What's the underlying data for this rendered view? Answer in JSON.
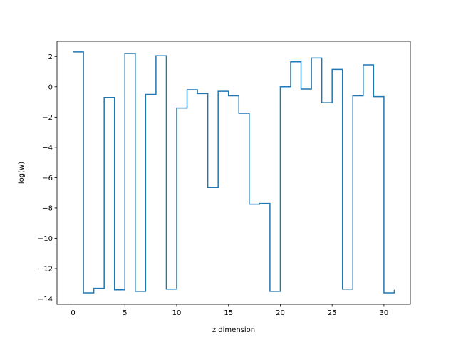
{
  "chart_data": {
    "type": "line",
    "drawstyle": "steps-post",
    "title": "",
    "xlabel": "z dimension",
    "ylabel": "log(w)",
    "xlim": [
      -1.55,
      32.55
    ],
    "ylim": [
      -14.35,
      3.0
    ],
    "xticks": [
      0,
      5,
      10,
      15,
      20,
      25,
      30
    ],
    "yticks": [
      -14,
      -12,
      -10,
      -8,
      -6,
      -4,
      -2,
      0,
      2
    ],
    "grid": false,
    "legend": "none",
    "line_color": "#1f77b4",
    "series": [
      {
        "x": [
          0,
          1,
          2,
          3,
          4,
          5,
          6,
          7,
          8,
          9,
          10,
          11,
          12,
          13,
          14,
          15,
          16,
          17,
          18,
          19,
          20,
          21,
          22,
          23,
          24,
          25,
          26,
          27,
          28,
          29,
          30,
          31
        ],
        "y": [
          2.3,
          -13.6,
          -13.3,
          -0.7,
          -13.4,
          2.2,
          -13.5,
          -0.5,
          2.05,
          -13.35,
          -1.4,
          -0.2,
          -0.45,
          -6.65,
          -0.3,
          -0.6,
          -1.75,
          -7.75,
          -7.7,
          -13.5,
          0.0,
          1.65,
          -0.15,
          1.9,
          -1.05,
          1.15,
          -13.35,
          -0.6,
          1.45,
          -0.65,
          -13.6,
          -13.4
        ]
      }
    ]
  }
}
